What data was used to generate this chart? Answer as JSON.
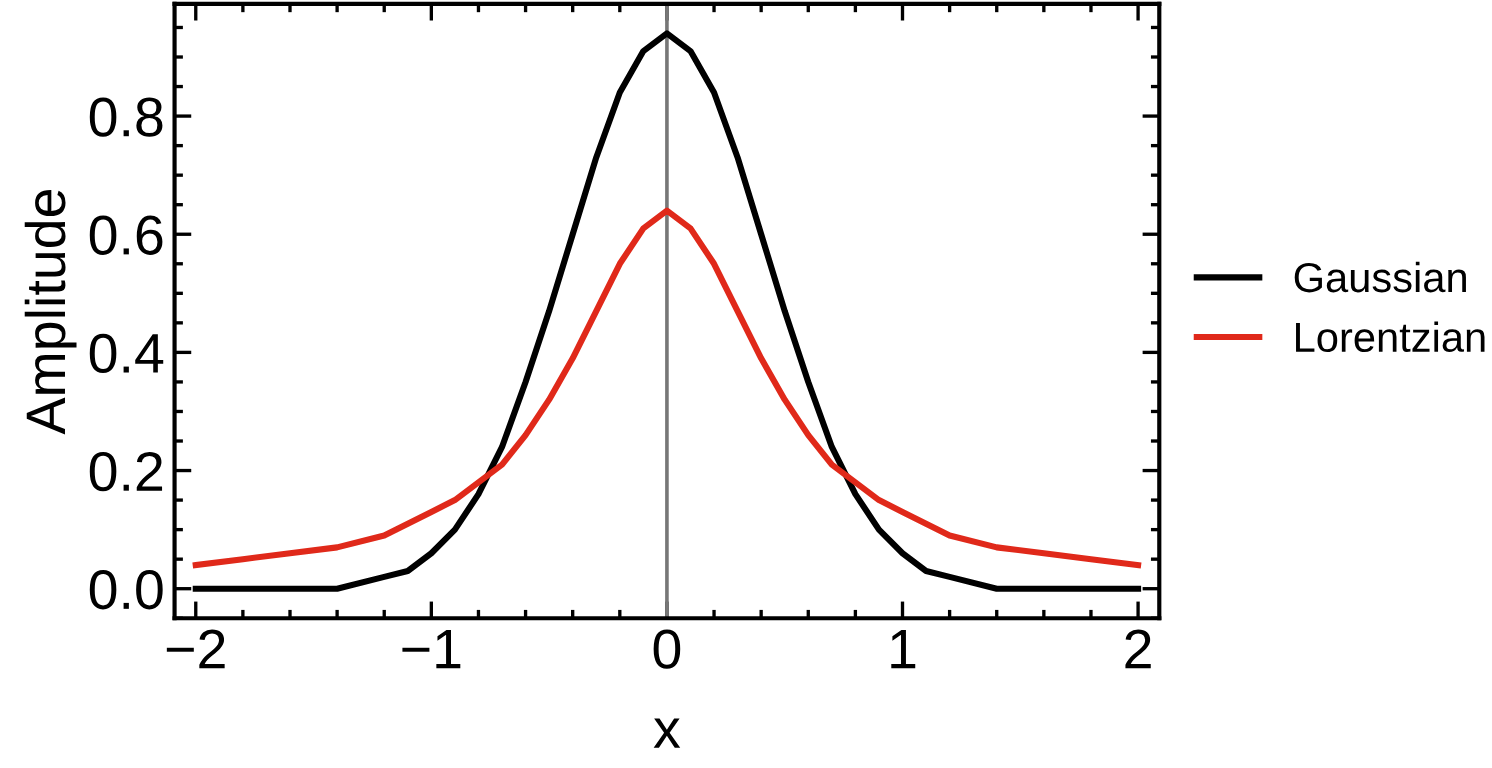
{
  "chart_data": {
    "type": "line",
    "xlabel": "x",
    "ylabel": "Amplitude",
    "x": [
      -2,
      -1.8,
      -1.6,
      -1.4,
      -1.2,
      -1.1,
      -1,
      -0.9,
      -0.8,
      -0.7,
      -0.6,
      -0.5,
      -0.4,
      -0.3,
      -0.2,
      -0.1,
      0,
      0.1,
      0.2,
      0.3,
      0.4,
      0.5,
      0.6,
      0.7,
      0.8,
      0.9,
      1,
      1.1,
      1.2,
      1.4,
      1.6,
      1.8,
      2
    ],
    "series": [
      {
        "name": "Gaussian",
        "color": "#000000",
        "values": [
          0.0,
          0.0,
          0.0,
          0.0,
          0.02,
          0.03,
          0.06,
          0.1,
          0.16,
          0.24,
          0.35,
          0.47,
          0.6,
          0.73,
          0.84,
          0.91,
          0.94,
          0.91,
          0.84,
          0.73,
          0.6,
          0.47,
          0.35,
          0.24,
          0.16,
          0.1,
          0.06,
          0.03,
          0.02,
          0.0,
          0.0,
          0.0,
          0.0
        ]
      },
      {
        "name": "Lorentzian",
        "color": "#e0291a",
        "values": [
          0.04,
          0.05,
          0.06,
          0.07,
          0.09,
          0.11,
          0.13,
          0.15,
          0.18,
          0.21,
          0.26,
          0.32,
          0.39,
          0.47,
          0.55,
          0.61,
          0.64,
          0.61,
          0.55,
          0.47,
          0.39,
          0.32,
          0.26,
          0.21,
          0.18,
          0.15,
          0.13,
          0.11,
          0.09,
          0.07,
          0.06,
          0.05,
          0.04
        ]
      }
    ],
    "xlim": [
      -2.09,
      2.09
    ],
    "ylim": [
      -0.05,
      0.99
    ],
    "xticks": [
      {
        "value": -2,
        "label": "−2"
      },
      {
        "value": -1,
        "label": "−1"
      },
      0,
      1,
      2
    ],
    "yticks": [
      {
        "value": 0,
        "label": "0.0"
      },
      0.2,
      0.4,
      0.6,
      0.8
    ],
    "ref_lines": [
      {
        "axis": "x",
        "value": 0,
        "color": "#777777"
      }
    ],
    "grid": false,
    "legend": "right",
    "line_style": "solid",
    "marker": "none"
  }
}
